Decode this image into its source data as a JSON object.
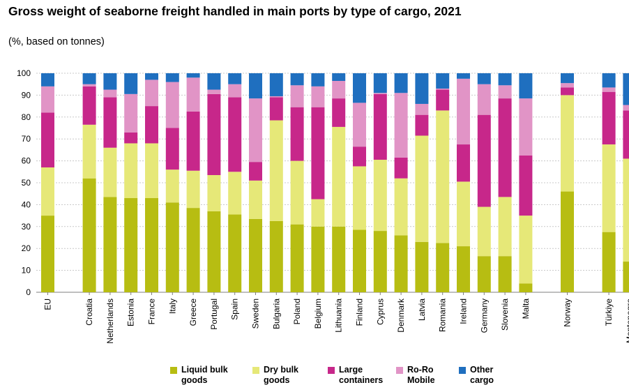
{
  "title": "Gross weight of seaborne freight handled in main ports by type of cargo, 2021",
  "subtitle": "(%, based on tonnes)",
  "chart_data": {
    "type": "bar",
    "stacked": true,
    "categories": [
      "EU",
      "Croatia",
      "Netherlands",
      "Estonia",
      "France",
      "Italy",
      "Greece",
      "Portugal",
      "Spain",
      "Sweden",
      "Bulgaria",
      "Poland",
      "Belgium",
      "Lithuania",
      "Finland",
      "Cyprus",
      "Denmark",
      "Latvia",
      "Romania",
      "Ireland",
      "Germany",
      "Slovenia",
      "Malta",
      "Norway",
      "Türkiye",
      "Montenegro"
    ],
    "series": [
      {
        "name": "Liquid bulk goods",
        "color": "#b7bd12",
        "values": [
          35,
          52,
          43.5,
          43,
          43,
          41,
          38.5,
          37,
          35.5,
          33.5,
          32.5,
          31,
          30,
          30,
          28.5,
          28,
          26,
          23,
          22.5,
          21,
          16.5,
          16.5,
          4,
          46,
          27.5,
          14
        ]
      },
      {
        "name": "Dry bulk goods",
        "color": "#e6e878",
        "values": [
          22,
          24.5,
          22.5,
          25,
          25,
          15,
          17,
          16.5,
          19.5,
          17.5,
          46,
          29,
          12.5,
          45.5,
          29,
          32.5,
          26,
          48.5,
          60.5,
          29.5,
          22.5,
          27,
          31,
          44,
          40,
          47
        ]
      },
      {
        "name": "Large containers",
        "color": "#c7278a",
        "values": [
          25,
          17.5,
          23,
          5,
          17,
          19,
          27,
          37,
          34,
          8.5,
          10.5,
          24.5,
          42,
          13,
          9,
          30,
          9.5,
          9.5,
          9.5,
          17,
          42,
          45,
          27.5,
          3.5,
          24,
          22
        ]
      },
      {
        "name": "Ro-Ro Mobile",
        "color": "#e194c6",
        "values": [
          12,
          1,
          3.5,
          17.5,
          12,
          21,
          15.5,
          2,
          6,
          29,
          0.5,
          10,
          9.5,
          8,
          20,
          0.5,
          29.5,
          5,
          0.5,
          30,
          14,
          6,
          26,
          2,
          2,
          2.5
        ]
      },
      {
        "name": "Other cargo",
        "color": "#1f6fbf",
        "values": [
          6,
          5,
          7.5,
          9.5,
          3,
          4,
          2,
          7.5,
          5,
          11.5,
          10.5,
          5.5,
          6,
          3.5,
          13.5,
          9,
          9,
          14,
          7,
          2.5,
          5,
          5.5,
          11.5,
          4.5,
          6.5,
          14.5
        ]
      }
    ],
    "ylim": [
      0,
      100
    ],
    "yticks": [
      "0",
      "10",
      "20",
      "30",
      "40",
      "50",
      "60",
      "70",
      "80",
      "90",
      "100"
    ],
    "grid": true,
    "legend_position": "bottom"
  },
  "legend": [
    {
      "label": "Liquid bulk\ngoods",
      "color": "#b7bd12"
    },
    {
      "label": "Dry bulk\ngoods",
      "color": "#e6e878"
    },
    {
      "label": "Large\ncontainers",
      "color": "#c7278a"
    },
    {
      "label": "Ro-Ro\nMobile",
      "color": "#e194c6"
    },
    {
      "label": "Other\ncargo",
      "color": "#1f6fbf"
    }
  ]
}
